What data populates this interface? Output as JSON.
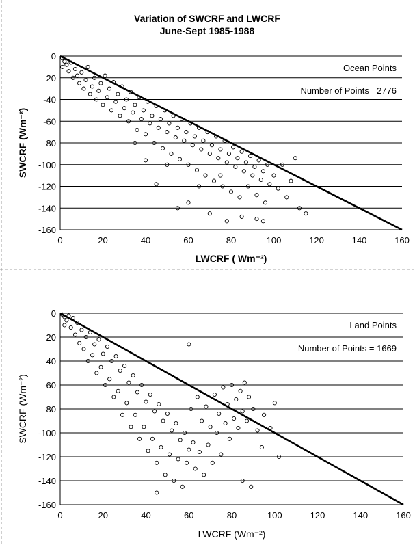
{
  "figure": {
    "title_line1": "Variation of SWCRF and LWCRF",
    "title_line2": "June-Sept 1985-1988"
  },
  "chart_data": [
    {
      "type": "scatter",
      "title": "Variation of SWCRF and LWCRF",
      "subtitle": "June-Sept 1985-1988",
      "xlabel": "LWCRF ( Wm⁻²)",
      "ylabel": "SWCRF (Wm⁻²)",
      "xlabel_bold": true,
      "ylabel_bold": true,
      "xlim": [
        0,
        160
      ],
      "ylim": [
        -160,
        0
      ],
      "xticks": [
        0,
        20,
        40,
        60,
        80,
        100,
        120,
        140,
        160
      ],
      "yticks": [
        0,
        -20,
        -40,
        -60,
        -80,
        -100,
        -120,
        -140,
        -160
      ],
      "grid": "horizontal",
      "annotation_1": "Ocean Points",
      "annotation_2": "Number of Points =2776",
      "reference_line": {
        "x": [
          0,
          160
        ],
        "y": [
          0,
          -160
        ]
      },
      "points": [
        [
          1,
          -2
        ],
        [
          2,
          -5
        ],
        [
          1,
          -10
        ],
        [
          3,
          -8
        ],
        [
          4,
          -14
        ],
        [
          5,
          -6
        ],
        [
          6,
          -20
        ],
        [
          7,
          -12
        ],
        [
          8,
          -18
        ],
        [
          9,
          -25
        ],
        [
          10,
          -15
        ],
        [
          11,
          -30
        ],
        [
          12,
          -22
        ],
        [
          13,
          -10
        ],
        [
          14,
          -35
        ],
        [
          15,
          -28
        ],
        [
          16,
          -20
        ],
        [
          17,
          -40
        ],
        [
          18,
          -32
        ],
        [
          19,
          -25
        ],
        [
          20,
          -45
        ],
        [
          21,
          -18
        ],
        [
          22,
          -38
        ],
        [
          23,
          -30
        ],
        [
          24,
          -50
        ],
        [
          25,
          -24
        ],
        [
          26,
          -42
        ],
        [
          27,
          -35
        ],
        [
          28,
          -55
        ],
        [
          29,
          -28
        ],
        [
          30,
          -48
        ],
        [
          31,
          -40
        ],
        [
          32,
          -60
        ],
        [
          33,
          -33
        ],
        [
          34,
          -52
        ],
        [
          35,
          -45
        ],
        [
          36,
          -68
        ],
        [
          37,
          -38
        ],
        [
          38,
          -58
        ],
        [
          39,
          -50
        ],
        [
          40,
          -72
        ],
        [
          41,
          -42
        ],
        [
          42,
          -62
        ],
        [
          43,
          -55
        ],
        [
          44,
          -80
        ],
        [
          45,
          -46
        ],
        [
          46,
          -66
        ],
        [
          47,
          -58
        ],
        [
          48,
          -85
        ],
        [
          49,
          -50
        ],
        [
          50,
          -70
        ],
        [
          51,
          -62
        ],
        [
          52,
          -90
        ],
        [
          53,
          -55
        ],
        [
          54,
          -75
        ],
        [
          55,
          -66
        ],
        [
          56,
          -95
        ],
        [
          57,
          -58
        ],
        [
          58,
          -78
        ],
        [
          59,
          -70
        ],
        [
          60,
          -100
        ],
        [
          61,
          -62
        ],
        [
          62,
          -82
        ],
        [
          63,
          -74
        ],
        [
          64,
          -105
        ],
        [
          65,
          -66
        ],
        [
          66,
          -86
        ],
        [
          67,
          -78
        ],
        [
          68,
          -110
        ],
        [
          69,
          -70
        ],
        [
          70,
          -90
        ],
        [
          71,
          -82
        ],
        [
          72,
          -115
        ],
        [
          73,
          -74
        ],
        [
          74,
          -94
        ],
        [
          75,
          -86
        ],
        [
          76,
          -120
        ],
        [
          77,
          -78
        ],
        [
          78,
          -98
        ],
        [
          79,
          -90
        ],
        [
          80,
          -125
        ],
        [
          81,
          -84
        ],
        [
          82,
          -102
        ],
        [
          83,
          -94
        ],
        [
          84,
          -130
        ],
        [
          85,
          -88
        ],
        [
          86,
          -106
        ],
        [
          87,
          -98
        ],
        [
          88,
          -120
        ],
        [
          89,
          -92
        ],
        [
          90,
          -110
        ],
        [
          91,
          -102
        ],
        [
          92,
          -128
        ],
        [
          93,
          -96
        ],
        [
          94,
          -114
        ],
        [
          95,
          -106
        ],
        [
          96,
          -135
        ],
        [
          97,
          -100
        ],
        [
          98,
          -118
        ],
        [
          100,
          -110
        ],
        [
          102,
          -122
        ],
        [
          104,
          -100
        ],
        [
          106,
          -130
        ],
        [
          108,
          -115
        ],
        [
          110,
          -94
        ],
        [
          112,
          -140
        ],
        [
          115,
          -145
        ],
        [
          92,
          -150
        ],
        [
          78,
          -152
        ],
        [
          55,
          -140
        ],
        [
          45,
          -118
        ],
        [
          50,
          -100
        ],
        [
          60,
          -135
        ],
        [
          70,
          -145
        ],
        [
          85,
          -148
        ],
        [
          95,
          -152
        ],
        [
          65,
          -120
        ],
        [
          75,
          -110
        ],
        [
          35,
          -80
        ],
        [
          40,
          -96
        ]
      ]
    },
    {
      "type": "scatter",
      "xlabel": "LWCRF (Wm⁻²)",
      "ylabel": "SWCRF (Wm⁻²)",
      "xlabel_bold": false,
      "ylabel_bold": false,
      "xlim": [
        0,
        160
      ],
      "ylim": [
        -160,
        0
      ],
      "xticks": [
        0,
        20,
        40,
        60,
        80,
        100,
        120,
        140,
        160
      ],
      "yticks": [
        0,
        -20,
        -40,
        -60,
        -80,
        -100,
        -120,
        -140,
        -160
      ],
      "grid": "horizontal",
      "annotation_1": "Land Points",
      "annotation_2": "Number of Points = 1669",
      "reference_line": {
        "x": [
          0,
          160
        ],
        "y": [
          0,
          -160
        ]
      },
      "points": [
        [
          1,
          -1
        ],
        [
          2,
          -3
        ],
        [
          3,
          -6
        ],
        [
          2,
          -10
        ],
        [
          4,
          -2
        ],
        [
          5,
          -12
        ],
        [
          6,
          -4
        ],
        [
          7,
          -18
        ],
        [
          8,
          -8
        ],
        [
          9,
          -25
        ],
        [
          10,
          -14
        ],
        [
          11,
          -30
        ],
        [
          12,
          -20
        ],
        [
          13,
          -40
        ],
        [
          14,
          -16
        ],
        [
          15,
          -35
        ],
        [
          16,
          -26
        ],
        [
          17,
          -50
        ],
        [
          18,
          -22
        ],
        [
          19,
          -45
        ],
        [
          20,
          -34
        ],
        [
          21,
          -60
        ],
        [
          22,
          -28
        ],
        [
          23,
          -55
        ],
        [
          24,
          -40
        ],
        [
          25,
          -70
        ],
        [
          26,
          -36
        ],
        [
          27,
          -65
        ],
        [
          28,
          -48
        ],
        [
          29,
          -85
        ],
        [
          30,
          -44
        ],
        [
          31,
          -75
        ],
        [
          32,
          -58
        ],
        [
          33,
          -95
        ],
        [
          34,
          -52
        ],
        [
          35,
          -85
        ],
        [
          36,
          -66
        ],
        [
          37,
          -105
        ],
        [
          38,
          -60
        ],
        [
          39,
          -95
        ],
        [
          40,
          -74
        ],
        [
          41,
          -115
        ],
        [
          42,
          -68
        ],
        [
          43,
          -105
        ],
        [
          44,
          -82
        ],
        [
          45,
          -125
        ],
        [
          46,
          -76
        ],
        [
          47,
          -112
        ],
        [
          48,
          -90
        ],
        [
          49,
          -135
        ],
        [
          50,
          -84
        ],
        [
          51,
          -118
        ],
        [
          52,
          -98
        ],
        [
          53,
          -140
        ],
        [
          54,
          -92
        ],
        [
          55,
          -122
        ],
        [
          56,
          -106
        ],
        [
          57,
          -145
        ],
        [
          58,
          -100
        ],
        [
          59,
          -125
        ],
        [
          60,
          -114
        ],
        [
          61,
          -80
        ],
        [
          62,
          -108
        ],
        [
          63,
          -130
        ],
        [
          64,
          -70
        ],
        [
          65,
          -116
        ],
        [
          66,
          -90
        ],
        [
          67,
          -135
        ],
        [
          68,
          -78
        ],
        [
          69,
          -110
        ],
        [
          70,
          -95
        ],
        [
          71,
          -125
        ],
        [
          72,
          -68
        ],
        [
          73,
          -100
        ],
        [
          74,
          -84
        ],
        [
          75,
          -118
        ],
        [
          76,
          -62
        ],
        [
          77,
          -92
        ],
        [
          78,
          -76
        ],
        [
          79,
          -105
        ],
        [
          80,
          -60
        ],
        [
          81,
          -88
        ],
        [
          82,
          -72
        ],
        [
          83,
          -96
        ],
        [
          84,
          -65
        ],
        [
          85,
          -82
        ],
        [
          86,
          -58
        ],
        [
          87,
          -90
        ],
        [
          88,
          -70
        ],
        [
          89,
          -145
        ],
        [
          90,
          -80
        ],
        [
          92,
          -98
        ],
        [
          95,
          -85
        ],
        [
          98,
          -96
        ],
        [
          100,
          -75
        ],
        [
          102,
          -120
        ],
        [
          94,
          -112
        ],
        [
          85,
          -140
        ],
        [
          60,
          -26
        ],
        [
          45,
          -150
        ]
      ]
    }
  ]
}
